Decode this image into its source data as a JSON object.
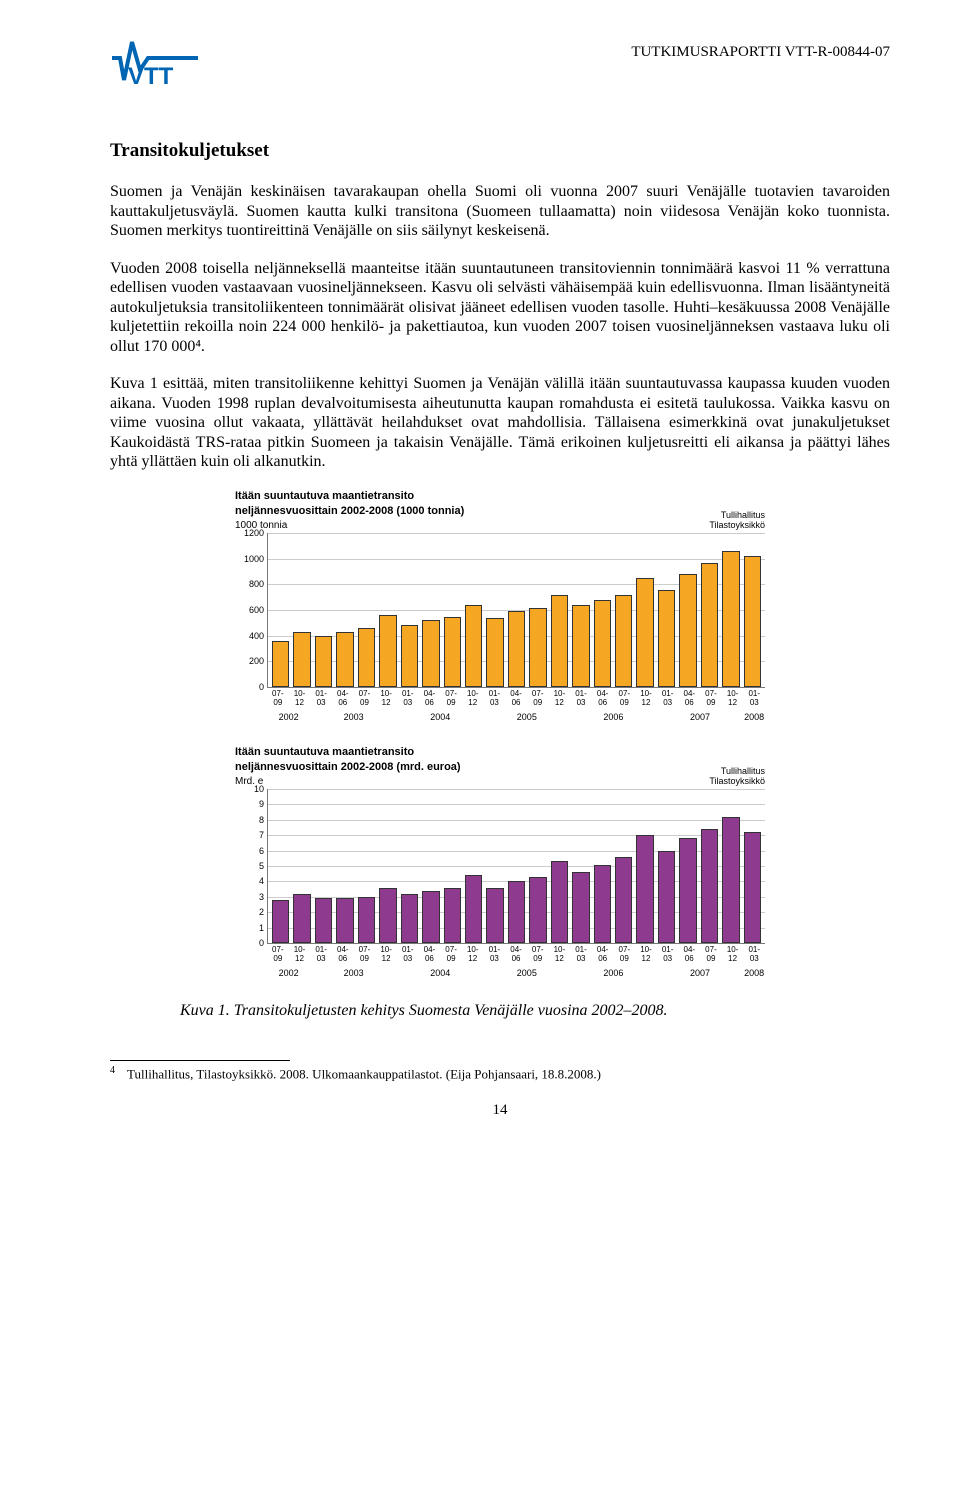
{
  "header": {
    "report_id": "TUTKIMUSRAPORTTI VTT-R-00844-07",
    "logo_color": "#0066b3"
  },
  "section_title": "Transitokuljetukset",
  "paragraphs": [
    "Suomen ja Venäjän keskinäisen tavarakaupan ohella Suomi oli vuonna 2007 suuri Venäjälle tuotavien tavaroiden kauttakuljetusväylä. Suomen kautta kulki transitona (Suomeen tullaamatta) noin viidesosa Venäjän koko tuonnista. Suomen merkitys tuontireittinä Venäjälle on siis säilynyt keskeisenä.",
    "Vuoden 2008 toisella neljänneksellä maanteitse itään suuntautuneen transitoviennin tonnimäärä kasvoi 11 % verrattuna edellisen vuoden vastaavaan vuosineljännekseen. Kasvu oli selvästi vähäisempää kuin edellisvuonna. Ilman lisääntyneitä autokuljetuksia transitoliikenteen tonnimäärät olisivat jääneet edellisen vuoden tasolle. Huhti–kesäkuussa 2008 Venäjälle kuljetettiin rekoilla noin 224 000 henkilö- ja pakettiautoa, kun vuoden 2007 toisen vuosineljänneksen vastaava luku oli ollut 170 000⁴.",
    "Kuva 1 esittää, miten transitoliikenne kehittyi Suomen ja Venäjän välillä itään suuntautuvassa kaupassa kuuden vuoden aikana. Vuoden 1998 ruplan devalvoitumisesta aiheutunutta kaupan romahdusta ei esitetä taulukossa. Vaikka kasvu on viime vuosina ollut vakaata, yllättävät heilahdukset ovat mahdollisia. Tällaisena esimerkkinä ovat junakuljetukset Kaukoidästä TRS-rataa pitkin Suomeen ja takaisin Venäjälle. Tämä erikoinen kuljetusreitti eli aikansa ja päättyi lähes yhtä yllättäen kuin oli alkanutkin."
  ],
  "chart1": {
    "type": "bar",
    "title_l1": "Itään suuntautuva maantietransito",
    "title_l2": "neljännesvuosittain 2002-2008 (1000 tonnia)",
    "yaxis_title": "1000 tonnia",
    "source_l1": "Tullihallitus",
    "source_l2": "Tilastoyksikkö",
    "ylim": [
      0,
      1200
    ],
    "ytick_step": 200,
    "bar_color": "#f5a623",
    "bar_border": "#333333",
    "grid_color": "#cccccc",
    "categories_q": [
      "07- 09",
      "10- 12",
      "01- 03",
      "04- 06",
      "07- 09",
      "10- 12",
      "01- 03",
      "04- 06",
      "07- 09",
      "10- 12",
      "01- 03",
      "04- 06",
      "07- 09",
      "10- 12",
      "01- 03",
      "04- 06",
      "07- 09",
      "10- 12",
      "01- 03",
      "04- 06",
      "07- 09",
      "10- 12",
      "01- 03"
    ],
    "values": [
      360,
      430,
      400,
      430,
      460,
      560,
      480,
      520,
      550,
      640,
      540,
      590,
      620,
      720,
      640,
      680,
      720,
      850,
      760,
      880,
      970,
      1060,
      1020
    ],
    "year_groups": [
      "2002",
      "2003",
      "2004",
      "2005",
      "2006",
      "2007",
      "2008"
    ]
  },
  "chart2": {
    "type": "bar",
    "title_l1": "Itään suuntautuva maantietransito",
    "title_l2": "neljännesvuosittain 2002-2008 (mrd. euroa)",
    "yaxis_title": "Mrd. e",
    "source_l1": "Tullihallitus",
    "source_l2": "Tilastoyksikkö",
    "ylim": [
      0,
      10
    ],
    "ytick_step": 1,
    "bar_color": "#8e3a8e",
    "bar_border": "#333333",
    "grid_color": "#cccccc",
    "categories_q": [
      "07- 09",
      "10- 12",
      "01- 03",
      "04- 06",
      "07- 09",
      "10- 12",
      "01- 03",
      "04- 06",
      "07- 09",
      "10- 12",
      "01- 03",
      "04- 06",
      "07- 09",
      "10- 12",
      "01- 03",
      "04- 06",
      "07- 09",
      "10- 12",
      "01- 03",
      "04- 06",
      "07- 09",
      "10- 12",
      "01- 03"
    ],
    "values": [
      2.8,
      3.2,
      2.9,
      2.9,
      3.0,
      3.6,
      3.2,
      3.4,
      3.6,
      4.4,
      3.6,
      4.0,
      4.3,
      5.3,
      4.6,
      5.1,
      5.6,
      7.0,
      6.0,
      6.8,
      7.4,
      8.2,
      7.2
    ],
    "year_groups": [
      "2002",
      "2003",
      "2004",
      "2005",
      "2006",
      "2007",
      "2008"
    ]
  },
  "caption": "Kuva 1. Transitokuljetusten kehitys Suomesta Venäjälle vuosina 2002–2008.",
  "footnote": {
    "num": "4",
    "text": "Tullihallitus, Tilastoyksikkö. 2008. Ulkomaankauppatilastot. (Eija Pohjansaari, 18.8.2008.)"
  },
  "page_number": "14"
}
